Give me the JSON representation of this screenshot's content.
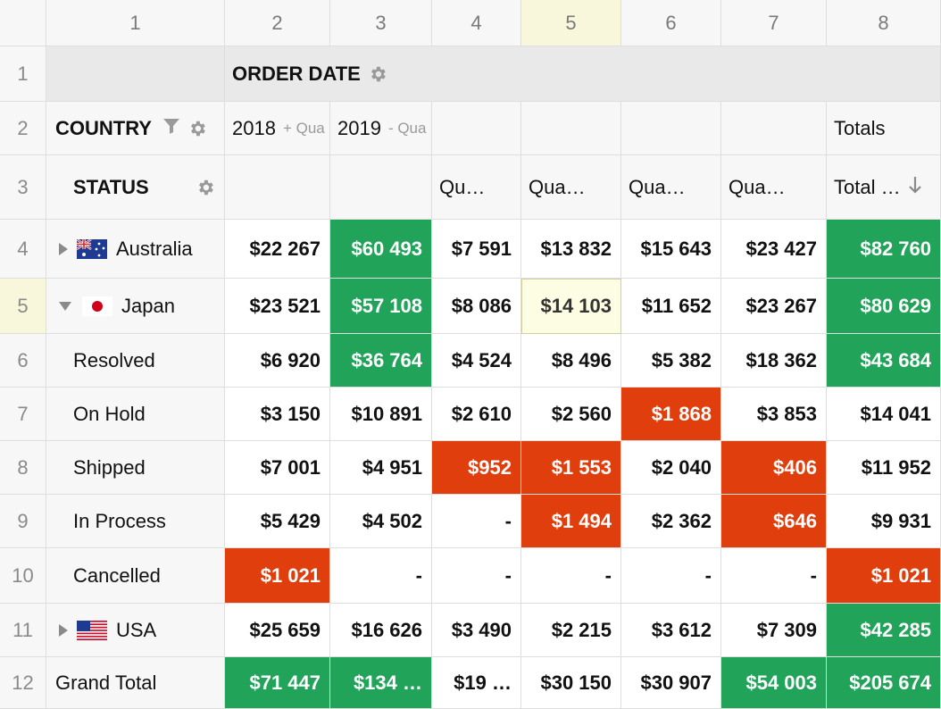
{
  "col_headers": [
    "1",
    "2",
    "3",
    "4",
    "5",
    "6",
    "7",
    "8"
  ],
  "row_headers": [
    "1",
    "2",
    "3",
    "4",
    "5",
    "6",
    "7",
    "8",
    "9",
    "10",
    "11",
    "12"
  ],
  "pivot": {
    "order_date_label": "ORDER DATE",
    "country_label": "COUNTRY",
    "status_label": "STATUS",
    "year_2018": "2018",
    "year_2018_toggle": "+ Qua",
    "year_2019": "2019",
    "year_2019_toggle": "- Qua",
    "totals_label": "Totals",
    "quarter_labels": [
      "Qu…",
      "Qua…",
      "Qua…",
      "Qua…"
    ],
    "total_col_label": "Total …"
  },
  "rows": [
    {
      "label": "Australia",
      "flag": "australia-flag-icon",
      "expander": "collapsed",
      "values": [
        "$22 267",
        "$60 493",
        "$7 591",
        "$13 832",
        "$15 643",
        "$23 427",
        "$82 760"
      ],
      "colors": [
        "",
        "green",
        "",
        "",
        "",
        "",
        "green"
      ]
    },
    {
      "label": "Japan",
      "flag": "japan-flag-icon",
      "expander": "expanded",
      "values": [
        "$23 521",
        "$57 108",
        "$8 086",
        "$14 103",
        "$11 652",
        "$23 267",
        "$80 629"
      ],
      "colors": [
        "",
        "green",
        "",
        "selected",
        "",
        "",
        "green"
      ]
    },
    {
      "label": "Resolved",
      "values": [
        "$6 920",
        "$36 764",
        "$4 524",
        "$8 496",
        "$5 382",
        "$18 362",
        "$43 684"
      ],
      "colors": [
        "",
        "green",
        "",
        "",
        "",
        "",
        "green"
      ]
    },
    {
      "label": "On Hold",
      "values": [
        "$3 150",
        "$10 891",
        "$2 610",
        "$2 560",
        "$1 868",
        "$3 853",
        "$14 041"
      ],
      "colors": [
        "",
        "",
        "",
        "",
        "red",
        "",
        ""
      ]
    },
    {
      "label": "Shipped",
      "values": [
        "$7 001",
        "$4 951",
        "$952",
        "$1 553",
        "$2 040",
        "$406",
        "$11 952"
      ],
      "colors": [
        "",
        "",
        "red",
        "red",
        "",
        "red",
        ""
      ]
    },
    {
      "label": "In Process",
      "values": [
        "$5 429",
        "$4 502",
        "-",
        "$1 494",
        "$2 362",
        "$646",
        "$9 931"
      ],
      "colors": [
        "",
        "",
        "",
        "red",
        "",
        "red",
        ""
      ]
    },
    {
      "label": "Cancelled",
      "values": [
        "$1 021",
        "-",
        "-",
        "-",
        "-",
        "-",
        "$1 021"
      ],
      "colors": [
        "red",
        "",
        "",
        "",
        "",
        "",
        "red"
      ]
    },
    {
      "label": "USA",
      "flag": "usa-flag-icon",
      "expander": "collapsed",
      "values": [
        "$25 659",
        "$16 626",
        "$3 490",
        "$2 215",
        "$3 612",
        "$7 309",
        "$42 285"
      ],
      "colors": [
        "",
        "",
        "",
        "",
        "",
        "",
        "green"
      ]
    },
    {
      "label": "Grand Total",
      "values": [
        "$71 447",
        "$134 …",
        "$19 …",
        "$30 150",
        "$30 907",
        "$54 003",
        "$205 674"
      ],
      "colors": [
        "green",
        "green",
        "",
        "",
        "",
        "green",
        "green"
      ]
    }
  ],
  "colors": {
    "green": "#21a35a",
    "red": "#e03e0c",
    "selected": "#fdfde3"
  }
}
